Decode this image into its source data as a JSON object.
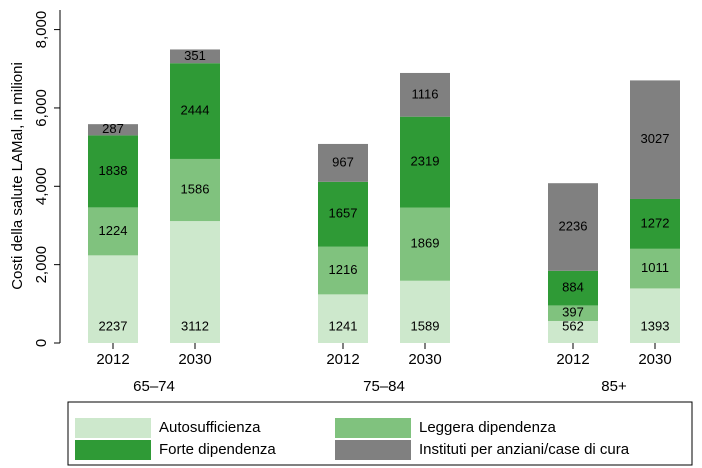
{
  "chart_data": {
    "type": "bar",
    "stacked": true,
    "ylabel": "Costi della salute LAMal, in milioni",
    "categories": [
      "2012",
      "2030",
      "2012",
      "2030",
      "2012",
      "2030"
    ],
    "groups": [
      "65–74",
      "75–84",
      "85+"
    ],
    "series": [
      {
        "name": "Autosufficienza",
        "color": "#cde8cc",
        "values": [
          2237,
          3112,
          1241,
          1589,
          562,
          1393
        ]
      },
      {
        "name": "Leggera dipendenza",
        "color": "#80c27e",
        "values": [
          1224,
          1586,
          1216,
          1869,
          397,
          1011
        ]
      },
      {
        "name": "Forte dipendenza",
        "color": "#2f9a36",
        "values": [
          1838,
          2444,
          1657,
          2319,
          884,
          1272
        ]
      },
      {
        "name": "Instituti per anziani/case di cura",
        "color": "#808080",
        "values": [
          287,
          351,
          967,
          1116,
          2236,
          3027
        ]
      }
    ],
    "ylim": [
      0,
      8500
    ],
    "yticks": [
      0,
      {
        "value": 2000,
        "label": "2,000"
      },
      {
        "value": 4000,
        "label": "4,000"
      },
      {
        "value": 6000,
        "label": "6,000"
      },
      {
        "value": 8000,
        "label": "8,000"
      }
    ],
    "grid": false
  }
}
